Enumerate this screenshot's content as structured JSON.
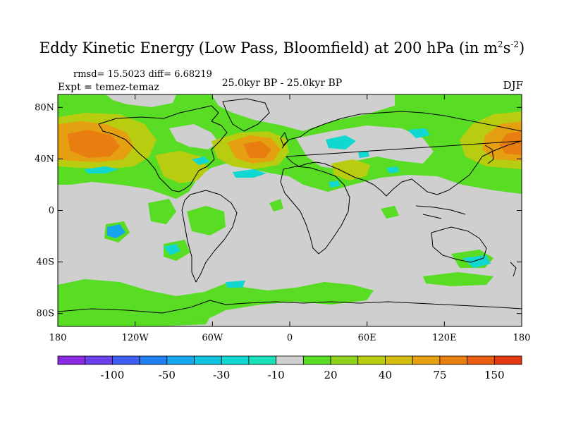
{
  "title": {
    "main": "Eddy Kinetic Energy (Low Pass, Bloomfield) at 200 hPa (in m",
    "sup1": "2",
    "mid": "s",
    "sup2": "-2",
    "end": ")"
  },
  "stats": "rmsd= 15.5023 diff= 6.68219",
  "expt": "Expt = temez-temaz",
  "center_label": "25.0kyr BP - 25.0kyr BP",
  "season": "DJF",
  "axes": {
    "lat_ticks": [
      {
        "lat": 80,
        "label": "80N"
      },
      {
        "lat": 40,
        "label": "40N"
      },
      {
        "lat": 0,
        "label": "0"
      },
      {
        "lat": -40,
        "label": "40S"
      },
      {
        "lat": -80,
        "label": "80S"
      }
    ],
    "lon_ticks": [
      {
        "lon": -180,
        "label": "180"
      },
      {
        "lon": -120,
        "label": "120W"
      },
      {
        "lon": -60,
        "label": "60W"
      },
      {
        "lon": 0,
        "label": "0"
      },
      {
        "lon": 60,
        "label": "60E"
      },
      {
        "lon": 120,
        "label": "120E"
      },
      {
        "lon": 180,
        "label": "180"
      }
    ],
    "lon_range": [
      -180,
      180
    ],
    "lat_range": [
      -90,
      90
    ]
  },
  "colorbar": {
    "colors": [
      "#8a2be2",
      "#6a3ee8",
      "#3d5ef0",
      "#1f7fee",
      "#16a6ee",
      "#10c3e0",
      "#10d8d0",
      "#18e0b8",
      "#cfcfcf",
      "#58dc24",
      "#8ed21c",
      "#b8cc10",
      "#d4bc10",
      "#e4a010",
      "#e87e10",
      "#e85c10",
      "#e43810"
    ],
    "labels": [
      {
        "after_box": 2,
        "text": "-100"
      },
      {
        "after_box": 4,
        "text": "-50"
      },
      {
        "after_box": 6,
        "text": "-30"
      },
      {
        "after_box": 8,
        "text": "-10"
      },
      {
        "after_box": 10,
        "text": "20"
      },
      {
        "after_box": 12,
        "text": "40"
      },
      {
        "after_box": 14,
        "text": "75"
      },
      {
        "after_box": 16,
        "text": "150"
      }
    ]
  },
  "palette": {
    "neutral": "#cfcfcf",
    "green": "#58dc24",
    "yellow_green": "#b8cc10",
    "orange_light": "#e4a010",
    "orange": "#e87e10",
    "cyan": "#10d8d0",
    "light_blue": "#16a6ee"
  }
}
